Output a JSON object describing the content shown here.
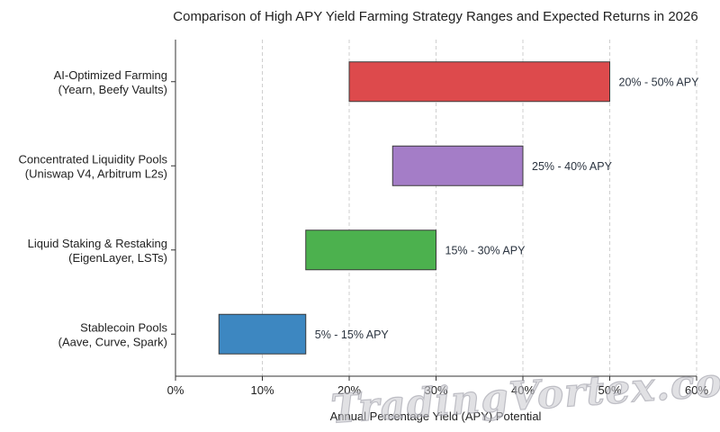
{
  "chart_data": {
    "type": "bar",
    "orientation": "horizontal-range",
    "title": "Comparison of High APY Yield Farming Strategy Ranges and Expected Returns in 2026",
    "xlabel": "Annual Percentage Yield (APY) Potential",
    "ylabel": "",
    "xlim": [
      0,
      60
    ],
    "xticks": [
      "0%",
      "10%",
      "20%",
      "30%",
      "40%",
      "50%",
      "60%"
    ],
    "grid": "vertical-dashed",
    "categories": [
      {
        "line1": "AI-Optimized Farming",
        "line2": "(Yearn, Beefy Vaults)",
        "low": 20,
        "high": 50,
        "label": "20% - 50% APY",
        "color": "#dd4a4c"
      },
      {
        "line1": "Concentrated Liquidity Pools",
        "line2": "(Uniswap V4, Arbitrum L2s)",
        "low": 25,
        "high": 40,
        "label": "25% - 40% APY",
        "color": "#a47dc7"
      },
      {
        "line1": "Liquid Staking & Restaking",
        "line2": "(EigenLayer, LSTs)",
        "low": 15,
        "high": 30,
        "label": "15% - 30% APY",
        "color": "#4cb14e"
      },
      {
        "line1": "Stablecoin Pools",
        "line2": "(Aave, Curve, Spark)",
        "low": 5,
        "high": 15,
        "label": "5% - 15% APY",
        "color": "#3d87c1"
      }
    ]
  },
  "watermark": "TradingVortex.com"
}
